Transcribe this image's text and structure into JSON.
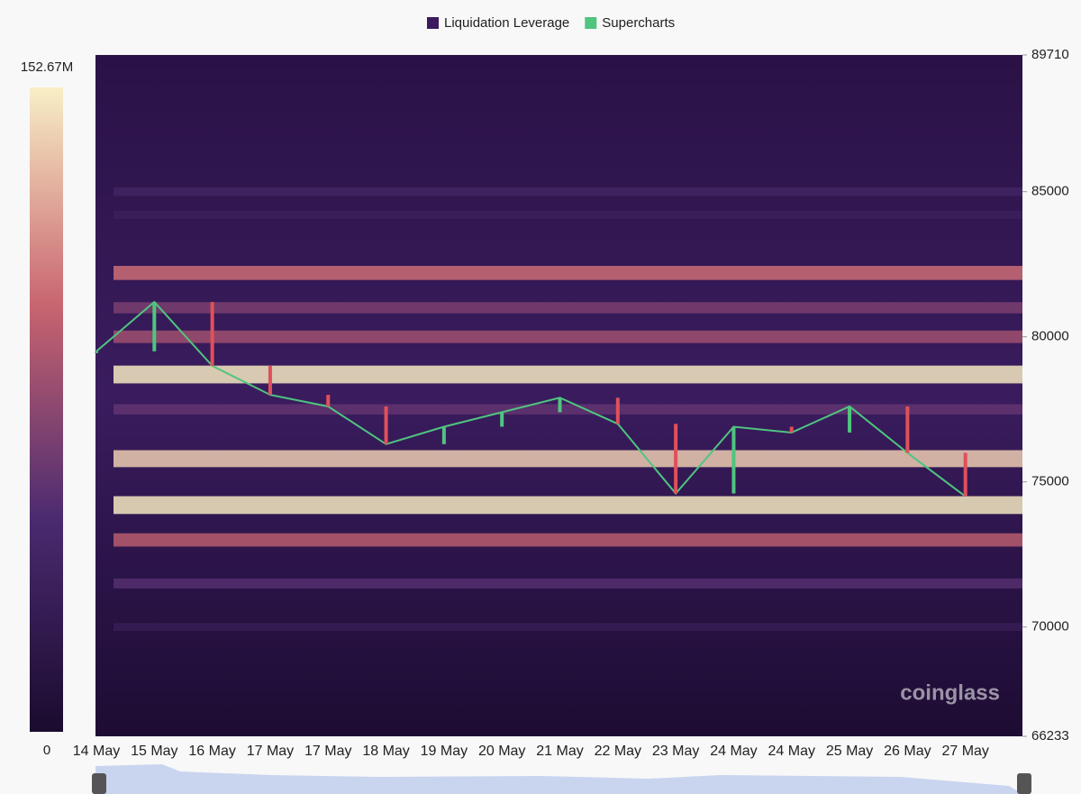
{
  "chart_data": {
    "type": "heatmap",
    "legend": [
      {
        "name": "Liquidation Leverage",
        "color": "#3a1a5c"
      },
      {
        "name": "Supercharts",
        "color": "#4fc57f"
      }
    ],
    "categories": [
      "14 May",
      "15 May",
      "16 May",
      "17 May",
      "17 May",
      "18 May",
      "19 May",
      "20 May",
      "21 May",
      "22 May",
      "23 May",
      "24 May",
      "24 May",
      "25 May",
      "26 May",
      "27 May"
    ],
    "series": [
      {
        "name": "Supercharts",
        "color": "#4fc57f",
        "values": [
          79500,
          81200,
          79000,
          78000,
          77600,
          76300,
          76900,
          77400,
          77900,
          77000,
          74600,
          76900,
          76700,
          77600,
          76000,
          74500
        ]
      }
    ],
    "zones": [
      {
        "price": 85000,
        "value": 40
      },
      {
        "price": 84200,
        "value": 35
      },
      {
        "price": 82200,
        "value": 105
      },
      {
        "price": 81000,
        "value": 70
      },
      {
        "price": 80000,
        "value": 85
      },
      {
        "price": 78700,
        "value": 150
      },
      {
        "price": 77500,
        "value": 60
      },
      {
        "price": 75800,
        "value": 140
      },
      {
        "price": 74200,
        "value": 150
      },
      {
        "price": 73000,
        "value": 95
      },
      {
        "price": 71500,
        "value": 55
      },
      {
        "price": 70000,
        "value": 30
      }
    ],
    "colorscale": [
      "#1a0b2e",
      "#4b2a70",
      "#c8646f",
      "#f8efc6"
    ],
    "zlim": [
      0,
      152.67
    ],
    "zticks": [
      0,
      {
        "value": 152.67,
        "label": "152.67M"
      }
    ],
    "ylim": [
      66233,
      89710
    ],
    "yticks": [
      89710,
      85000,
      80000,
      75000,
      70000,
      66233
    ],
    "watermark": "coinglass"
  }
}
